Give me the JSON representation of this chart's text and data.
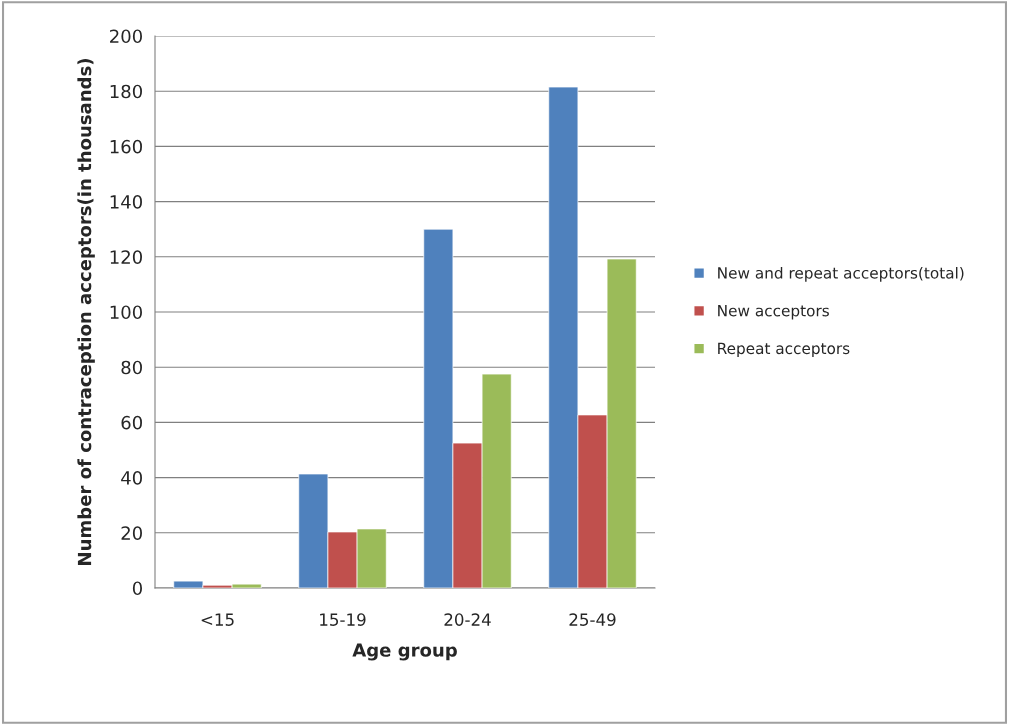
{
  "chart_data": {
    "type": "bar",
    "xlabel": "Age group",
    "ylabel": "Number of contraception acceptors(in thousands)",
    "categories": [
      "<15",
      "15-19",
      "20-24",
      "25-49"
    ],
    "series": [
      {
        "name": "New and repeat acceptors(total)",
        "color": "#4f81bd",
        "values": [
          2.5,
          41.3,
          130,
          181.5
        ]
      },
      {
        "name": "New acceptors",
        "color": "#c0504d",
        "values": [
          1,
          20.3,
          52.5,
          62.7
        ]
      },
      {
        "name": "Repeat acceptors",
        "color": "#9bbb59",
        "values": [
          1.4,
          21.4,
          77.5,
          119.2
        ]
      }
    ],
    "ylim": [
      0,
      200
    ],
    "yticks": [
      0,
      20,
      40,
      60,
      80,
      100,
      120,
      140,
      160,
      180,
      200
    ],
    "grid": "y",
    "legend": "right"
  }
}
